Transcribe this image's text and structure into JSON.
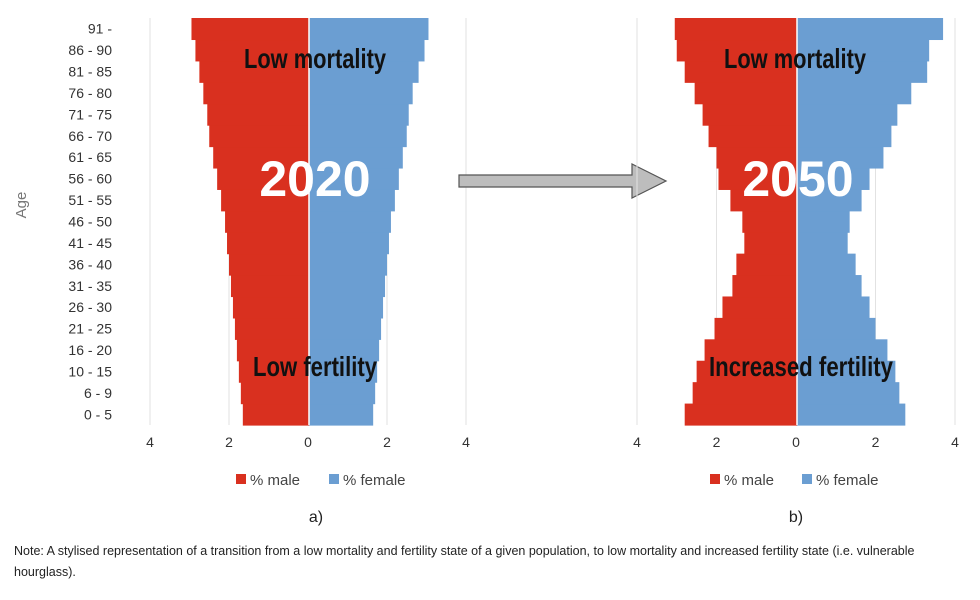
{
  "chart_data": [
    {
      "type": "bar",
      "orientation": "horizontal-pyramid",
      "year_label": "2020",
      "top_annotation": "Low mortality",
      "bottom_annotation": "Low fertility",
      "panel_label": "a)",
      "ylabel": "Age",
      "categories": [
        "0 - 5",
        "6 - 9",
        "10 - 15",
        "16 - 20",
        "21 - 25",
        "26 - 30",
        "31 - 35",
        "36 - 40",
        "41 - 45",
        "46 - 50",
        "51 - 55",
        "56 - 60",
        "61 - 65",
        "66 - 70",
        "71 - 75",
        "76 - 80",
        "81 - 85",
        "86 - 90",
        "91 -"
      ],
      "xlim": [
        -4,
        4
      ],
      "x_ticks": [
        "4",
        "2",
        "0",
        "2",
        "4"
      ],
      "series": [
        {
          "name": "% male",
          "color": "#d9301f",
          "values": [
            1.65,
            1.7,
            1.75,
            1.8,
            1.85,
            1.9,
            1.95,
            2.0,
            2.05,
            2.1,
            2.2,
            2.3,
            2.4,
            2.5,
            2.55,
            2.65,
            2.75,
            2.85,
            2.95
          ]
        },
        {
          "name": "% female",
          "color": "#6b9ed2",
          "values": [
            1.65,
            1.7,
            1.75,
            1.8,
            1.85,
            1.9,
            1.95,
            2.0,
            2.05,
            2.1,
            2.2,
            2.3,
            2.4,
            2.5,
            2.55,
            2.65,
            2.8,
            2.95,
            3.05
          ]
        }
      ],
      "legend": "bottom"
    },
    {
      "type": "bar",
      "orientation": "horizontal-pyramid",
      "year_label": "2050",
      "top_annotation": "Low mortality",
      "bottom_annotation": "Increased fertility",
      "panel_label": "b)",
      "categories": [
        "0 - 5",
        "6 - 9",
        "10 - 15",
        "16 - 20",
        "21 - 25",
        "26 - 30",
        "31 - 35",
        "36 - 40",
        "41 - 45",
        "46 - 50",
        "51 - 55",
        "56 - 60",
        "61 - 65",
        "66 - 70",
        "71 - 75",
        "76 - 80",
        "81 - 85",
        "86 - 90",
        "91 -"
      ],
      "xlim": [
        -4,
        4
      ],
      "x_ticks": [
        "4",
        "2",
        "0",
        "2",
        "4"
      ],
      "series": [
        {
          "name": "% male",
          "color": "#d9301f",
          "values": [
            2.8,
            2.6,
            2.5,
            2.3,
            2.05,
            1.85,
            1.6,
            1.5,
            1.3,
            1.35,
            1.65,
            1.95,
            2.0,
            2.2,
            2.35,
            2.55,
            2.8,
            3.0,
            3.05
          ]
        },
        {
          "name": "% female",
          "color": "#6b9ed2",
          "values": [
            2.75,
            2.6,
            2.5,
            2.3,
            2.0,
            1.85,
            1.65,
            1.5,
            1.3,
            1.35,
            1.65,
            1.85,
            2.2,
            2.4,
            2.55,
            2.9,
            3.3,
            3.35,
            3.7
          ]
        }
      ],
      "legend": "bottom"
    }
  ],
  "colors": {
    "male": "#d9301f",
    "female": "#6b9ed2",
    "arrow": "#bdbdbd",
    "grid": "#e2e2e2"
  },
  "note": "Note: A stylised representation of a transition from a low mortality and fertility state of a given population, to low mortality and increased fertility state (i.e. vulnerable hourglass)."
}
